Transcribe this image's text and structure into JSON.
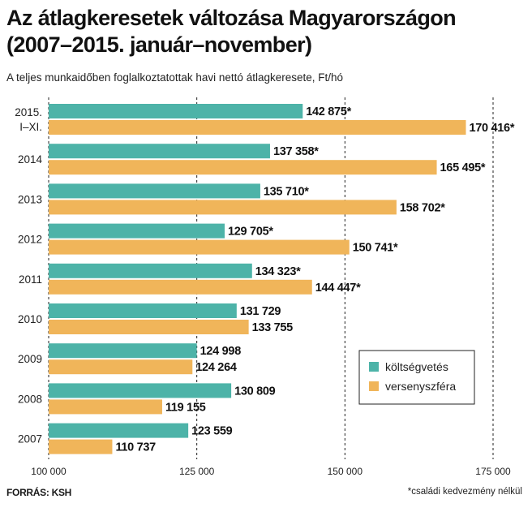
{
  "header": {
    "title_line1": "Az átlagkeresetek változása Magyarországon",
    "title_line2": "(2007–2015. január–november)",
    "subtitle": "A teljes munkaidőben foglalkoztatottak havi nettó átlagkeresete, Ft/hó"
  },
  "footer": {
    "source": "FORRÁS: KSH",
    "footnote": "*családi kedvezmény nélkül"
  },
  "chart_data": {
    "type": "bar",
    "orientation": "horizontal",
    "categories": [
      {
        "label_lines": [
          "2015.",
          "I–XI."
        ]
      },
      {
        "label_lines": [
          "2014"
        ]
      },
      {
        "label_lines": [
          "2013"
        ]
      },
      {
        "label_lines": [
          "2012"
        ]
      },
      {
        "label_lines": [
          "2011"
        ]
      },
      {
        "label_lines": [
          "2010"
        ]
      },
      {
        "label_lines": [
          "2009"
        ]
      },
      {
        "label_lines": [
          "2008"
        ]
      },
      {
        "label_lines": [
          "2007"
        ]
      }
    ],
    "series": [
      {
        "name": "költségvetés",
        "color": "#4db3a8",
        "values": [
          142875,
          137358,
          135710,
          129705,
          134323,
          131729,
          124998,
          130809,
          123559
        ],
        "labels": [
          "142 875*",
          "137 358*",
          "135 710*",
          "129 705*",
          "134 323*",
          "131 729",
          "124 998",
          "130 809",
          "123 559"
        ]
      },
      {
        "name": "versenyszféra",
        "color": "#f0b55a",
        "values": [
          170416,
          165495,
          158702,
          150741,
          144447,
          133755,
          124264,
          119155,
          110737
        ],
        "labels": [
          "170 416*",
          "165 495*",
          "158 702*",
          "150 741*",
          "144 447*",
          "133 755",
          "124 264",
          "119 155",
          "110 737"
        ]
      }
    ],
    "xlim": [
      100000,
      175000
    ],
    "xticks": [
      100000,
      125000,
      150000,
      175000
    ],
    "xtick_labels": [
      "100 000",
      "125 000",
      "150 000",
      "175 000"
    ],
    "grid": "dashed vertical",
    "legend_position": "bottom-right"
  }
}
